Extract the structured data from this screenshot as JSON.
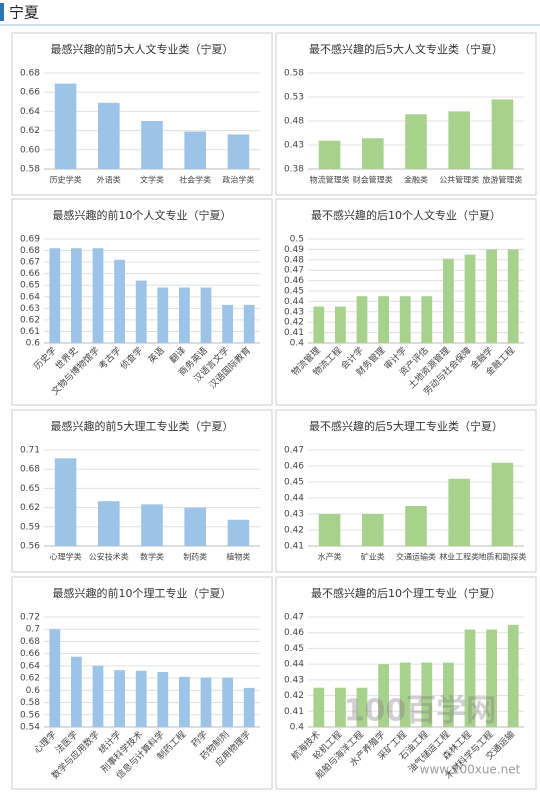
{
  "header": {
    "title": "宁夏"
  },
  "watermark": {
    "logo": "100百学网",
    "url": "www.100xue.net"
  },
  "chart_data": [
    {
      "type": "bar",
      "title": "最感兴趣的前5大人文专业类（宁夏）",
      "categories": [
        "历史学类",
        "外语类",
        "文学类",
        "社会学类",
        "政治学类"
      ],
      "values": [
        0.669,
        0.649,
        0.63,
        0.619,
        0.616
      ],
      "color": "#9dc3e6",
      "ylim": [
        0.58,
        0.68
      ],
      "yticks": [
        0.58,
        {
          "value": 0.6,
          "label": "0.60"
        },
        0.62,
        0.64,
        0.66,
        0.68
      ]
    },
    {
      "type": "bar",
      "title": "最不感兴趣的后5大人文专业类（宁夏）",
      "categories": [
        "物流管理类",
        "财会管理类",
        "金融类",
        "公共管理类",
        "旅游管理类"
      ],
      "values": [
        0.439,
        0.444,
        0.494,
        0.5,
        0.525
      ],
      "color": "#a9d18e",
      "ylim": [
        0.38,
        0.58
      ],
      "yticks": [
        0.38,
        0.43,
        0.48,
        0.53,
        0.58
      ]
    },
    {
      "type": "bar",
      "title": "最感兴趣的前10个人文专业（宁夏）",
      "categories": [
        "历史学",
        "世界史",
        "文物与博物馆学",
        "考古学",
        "侦查学",
        "英语",
        "翻译",
        "商务英语",
        "汉语言文学",
        "汉语国际教育"
      ],
      "values": [
        0.682,
        0.682,
        0.682,
        0.672,
        0.654,
        0.648,
        0.648,
        0.648,
        0.633,
        0.633
      ],
      "color": "#9dc3e6",
      "ylim": [
        0.6,
        0.69
      ],
      "yticks": [
        0.6,
        0.61,
        0.62,
        0.63,
        0.64,
        0.65,
        0.66,
        0.67,
        0.68,
        0.69
      ]
    },
    {
      "type": "bar",
      "title": "最不感兴趣的后10个人文专业（宁夏）",
      "categories": [
        "物流管理",
        "物流工程",
        "会计学",
        "财务管理",
        "审计学",
        "资产评估",
        "土地资源管理",
        "劳动与社会保障",
        "金融学",
        "金融工程"
      ],
      "values": [
        0.435,
        0.435,
        0.445,
        0.445,
        0.445,
        0.445,
        0.481,
        0.485,
        0.49,
        0.49
      ],
      "color": "#a9d18e",
      "ylim": [
        0.4,
        0.5
      ],
      "yticks": [
        0.4,
        0.41,
        0.42,
        0.43,
        0.44,
        0.45,
        0.46,
        0.47,
        0.48,
        0.49,
        0.5
      ]
    },
    {
      "type": "bar",
      "title": "最感兴趣的前5大理工专业类（宁夏）",
      "categories": [
        "心理学类",
        "公安技术类",
        "数学类",
        "制药类",
        "植物类"
      ],
      "values": [
        0.697,
        0.63,
        0.625,
        0.62,
        0.601
      ],
      "color": "#9dc3e6",
      "ylim": [
        0.56,
        0.71
      ],
      "yticks": [
        0.56,
        0.59,
        0.62,
        0.65,
        0.68,
        0.71
      ]
    },
    {
      "type": "bar",
      "title": "最不感兴趣的后5大理工专业类（宁夏）",
      "categories": [
        "水产类",
        "矿业类",
        "交通运输类",
        "林业工程类",
        "地质和勘探类"
      ],
      "values": [
        0.43,
        0.43,
        0.435,
        0.452,
        0.462
      ],
      "color": "#a9d18e",
      "ylim": [
        0.41,
        0.47
      ],
      "yticks": [
        0.41,
        0.42,
        0.43,
        0.44,
        0.45,
        0.46,
        0.47
      ]
    },
    {
      "type": "bar",
      "title": "最感兴趣的前10个理工专业（宁夏）",
      "categories": [
        "心理学",
        "法医学",
        "数学与应用数学",
        "统计学",
        "刑事科学技术",
        "信息与计算科学",
        "制药工程",
        "药学",
        "药物制剂",
        "应用物理学"
      ],
      "values": [
        0.7,
        0.655,
        0.64,
        0.633,
        0.632,
        0.63,
        0.622,
        0.621,
        0.621,
        0.604
      ],
      "color": "#9dc3e6",
      "ylim": [
        0.54,
        0.72
      ],
      "yticks": [
        0.54,
        0.56,
        0.58,
        0.6,
        0.62,
        0.64,
        0.66,
        0.68,
        0.7,
        0.72
      ]
    },
    {
      "type": "bar",
      "title": "最不感兴趣的后10个理工专业（宁夏）",
      "categories": [
        "航海技术",
        "轮机工程",
        "船舶与海洋工程",
        "水产养殖学",
        "采矿工程",
        "石油工程",
        "油气储运工程",
        "森林工程",
        "木材科学与工程",
        "交通运输"
      ],
      "values": [
        0.425,
        0.425,
        0.425,
        0.44,
        0.441,
        0.441,
        0.441,
        0.462,
        0.462,
        0.465
      ],
      "color": "#a9d18e",
      "ylim": [
        0.4,
        0.47
      ],
      "yticks": [
        0.4,
        0.41,
        0.42,
        0.43,
        0.44,
        0.45,
        0.46,
        0.47
      ]
    }
  ]
}
